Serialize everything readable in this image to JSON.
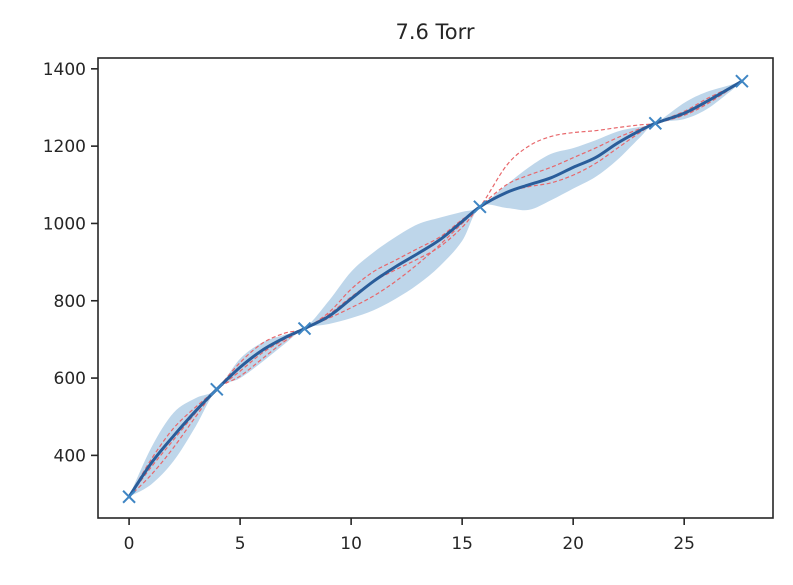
{
  "chart_data": {
    "type": "line",
    "title": "7.6 Torr",
    "xlabel": "",
    "ylabel": "",
    "xlim": [
      -1.4,
      29.0
    ],
    "ylim": [
      238,
      1428
    ],
    "xticks": [
      0,
      5,
      10,
      15,
      20,
      25
    ],
    "yticks": [
      400,
      600,
      800,
      1000,
      1200,
      1400
    ],
    "grid": false,
    "legend": "none",
    "colors": {
      "mean_line": "#2a5d9a",
      "band": "#b7d1e8",
      "samples": "#e8676b",
      "markers": "#3f86c4",
      "axes": "#262626"
    },
    "observations": {
      "x": [
        0,
        3.95,
        7.9,
        15.8,
        23.7,
        27.6
      ],
      "y": [
        293,
        571,
        728,
        1043,
        1259,
        1368
      ]
    },
    "mean": {
      "x": [
        0,
        1,
        2,
        3,
        3.95,
        5,
        6,
        7,
        7.9,
        9,
        10,
        11,
        12,
        13,
        14,
        15,
        15.8,
        17,
        18,
        19,
        20,
        21,
        22,
        23,
        23.7,
        25,
        26,
        27,
        27.6
      ],
      "y": [
        293,
        380,
        450,
        515,
        571,
        628,
        672,
        704,
        728,
        760,
        805,
        850,
        888,
        922,
        958,
        1005,
        1043,
        1080,
        1100,
        1118,
        1145,
        1170,
        1208,
        1240,
        1259,
        1285,
        1315,
        1348,
        1368
      ]
    },
    "band": {
      "x": [
        0,
        1,
        2,
        3,
        3.95,
        5,
        6,
        7,
        7.9,
        9,
        10,
        11,
        12,
        13,
        14,
        15,
        15.8,
        17,
        18,
        19,
        20,
        21,
        22,
        23,
        23.7,
        25,
        26,
        27,
        27.6
      ],
      "upper": [
        293,
        420,
        510,
        548,
        571,
        650,
        692,
        712,
        728,
        800,
        875,
        925,
        965,
        998,
        1015,
        1030,
        1043,
        1100,
        1145,
        1180,
        1195,
        1215,
        1238,
        1250,
        1259,
        1312,
        1340,
        1357,
        1368
      ],
      "lower": [
        293,
        325,
        385,
        475,
        571,
        600,
        642,
        688,
        728,
        740,
        755,
        775,
        805,
        842,
        890,
        955,
        1043,
        1040,
        1035,
        1060,
        1090,
        1120,
        1165,
        1222,
        1259,
        1270,
        1295,
        1338,
        1368
      ]
    },
    "samples": [
      {
        "x": [
          0,
          1,
          2,
          3,
          3.95,
          5,
          6,
          7,
          7.9,
          9,
          10,
          11,
          12,
          13,
          14,
          15,
          15.8,
          17,
          18,
          19,
          20,
          21,
          22,
          23,
          23.7,
          25,
          26,
          27,
          27.6
        ],
        "y": [
          293,
          370,
          440,
          510,
          571,
          640,
          690,
          716,
          728,
          770,
          830,
          875,
          905,
          935,
          965,
          1010,
          1043,
          1150,
          1200,
          1225,
          1235,
          1240,
          1248,
          1255,
          1259,
          1280,
          1308,
          1345,
          1368
        ]
      },
      {
        "x": [
          0,
          1,
          2,
          3,
          3.95,
          5,
          6,
          7,
          7.9,
          9,
          10,
          11,
          12,
          13,
          14,
          15,
          15.8,
          17,
          18,
          19,
          20,
          21,
          22,
          23,
          23.7,
          25,
          26,
          27,
          27.6
        ],
        "y": [
          293,
          350,
          420,
          500,
          571,
          605,
          650,
          695,
          728,
          755,
          782,
          812,
          850,
          895,
          945,
          1000,
          1043,
          1080,
          1095,
          1105,
          1125,
          1155,
          1195,
          1235,
          1259,
          1290,
          1322,
          1350,
          1368
        ]
      },
      {
        "x": [
          0,
          1,
          2,
          3,
          3.95,
          5,
          6,
          7,
          7.9,
          9,
          10,
          11,
          12,
          13,
          14,
          15,
          15.8,
          17,
          18,
          19,
          20,
          21,
          22,
          23,
          23.7,
          25,
          26,
          27,
          27.6
        ],
        "y": [
          293,
          390,
          470,
          525,
          571,
          618,
          665,
          700,
          728,
          765,
          810,
          850,
          880,
          908,
          940,
          990,
          1043,
          1100,
          1125,
          1145,
          1170,
          1195,
          1222,
          1245,
          1259,
          1282,
          1312,
          1346,
          1368
        ]
      }
    ]
  }
}
